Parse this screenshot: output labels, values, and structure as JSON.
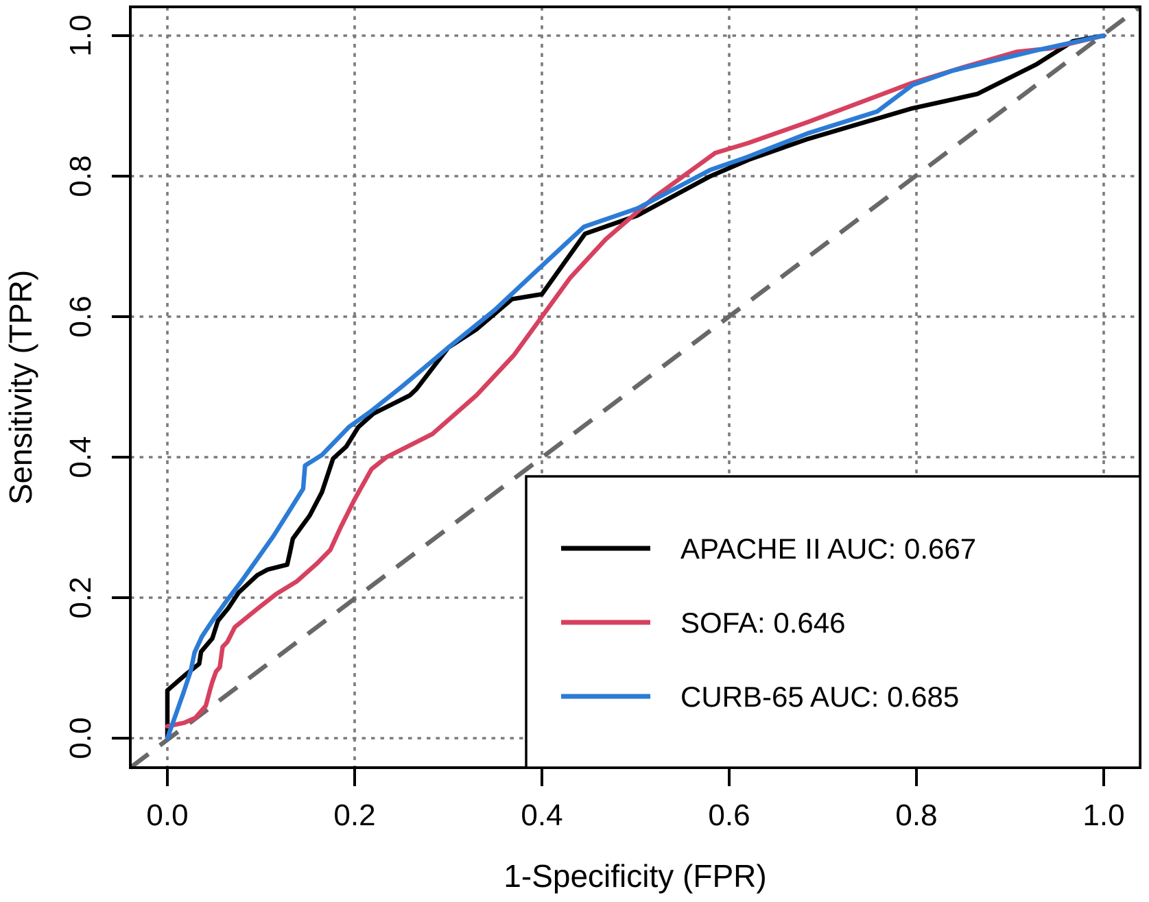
{
  "figure": {
    "background": "#ffffff",
    "border_color": "#000000"
  },
  "chart_data": {
    "type": "line",
    "subtype": "roc-curves",
    "title": "",
    "xlabel": "1-Specificity (FPR)",
    "ylabel": "Sensitivity (TPR)",
    "xlim": [
      0,
      1
    ],
    "ylim": [
      0,
      1
    ],
    "grid": {
      "show": true,
      "style": "dotted",
      "color": "#7b7b7b"
    },
    "x_ticks": [
      "0.0",
      "0.2",
      "0.4",
      "0.6",
      "0.8",
      "1.0"
    ],
    "y_ticks": [
      "0.0",
      "0.2",
      "0.4",
      "0.6",
      "0.8",
      "1.0"
    ],
    "x_tick_values": [
      0,
      0.2,
      0.4,
      0.6,
      0.8,
      1
    ],
    "y_tick_values": [
      0,
      0.2,
      0.4,
      0.6,
      0.8,
      1
    ],
    "reference_line": {
      "name": "chance-diagonal",
      "style": "dashed",
      "color": "#686868",
      "from": [
        0,
        0
      ],
      "to": [
        1,
        1
      ]
    },
    "legend": {
      "position": "bottom-right",
      "border": true,
      "background": "#ffffff"
    },
    "series": [
      {
        "name": "APACHE II",
        "legend_label": "APACHE II AUC: 0.667",
        "auc": "0.667",
        "color": "#000000",
        "points": [
          [
            0,
            0
          ],
          [
            0,
            0.068
          ],
          [
            0.019,
            0.09
          ],
          [
            0.034,
            0.106
          ],
          [
            0.036,
            0.123
          ],
          [
            0.048,
            0.142
          ],
          [
            0.054,
            0.167
          ],
          [
            0.065,
            0.185
          ],
          [
            0.076,
            0.207
          ],
          [
            0.096,
            0.232
          ],
          [
            0.107,
            0.24
          ],
          [
            0.128,
            0.247
          ],
          [
            0.131,
            0.265
          ],
          [
            0.134,
            0.284
          ],
          [
            0.152,
            0.317
          ],
          [
            0.165,
            0.35
          ],
          [
            0.177,
            0.398
          ],
          [
            0.191,
            0.415
          ],
          [
            0.204,
            0.443
          ],
          [
            0.22,
            0.462
          ],
          [
            0.259,
            0.488
          ],
          [
            0.266,
            0.497
          ],
          [
            0.3,
            0.556
          ],
          [
            0.33,
            0.582
          ],
          [
            0.368,
            0.625
          ],
          [
            0.4,
            0.632
          ],
          [
            0.446,
            0.718
          ],
          [
            0.502,
            0.744
          ],
          [
            0.58,
            0.8
          ],
          [
            0.622,
            0.824
          ],
          [
            0.684,
            0.853
          ],
          [
            0.794,
            0.896
          ],
          [
            0.865,
            0.917
          ],
          [
            0.928,
            0.959
          ],
          [
            0.967,
            0.992
          ],
          [
            1,
            1
          ]
        ]
      },
      {
        "name": "SOFA",
        "legend_label": "SOFA: 0.646",
        "auc": "0.646",
        "color": "#D6415F",
        "points": [
          [
            0,
            0.017
          ],
          [
            0.018,
            0.022
          ],
          [
            0.03,
            0.029
          ],
          [
            0.041,
            0.046
          ],
          [
            0.046,
            0.071
          ],
          [
            0.048,
            0.08
          ],
          [
            0.052,
            0.095
          ],
          [
            0.056,
            0.101
          ],
          [
            0.059,
            0.13
          ],
          [
            0.064,
            0.137
          ],
          [
            0.072,
            0.158
          ],
          [
            0.096,
            0.184
          ],
          [
            0.116,
            0.205
          ],
          [
            0.138,
            0.223
          ],
          [
            0.16,
            0.249
          ],
          [
            0.174,
            0.268
          ],
          [
            0.185,
            0.3
          ],
          [
            0.2,
            0.34
          ],
          [
            0.218,
            0.383
          ],
          [
            0.234,
            0.4
          ],
          [
            0.283,
            0.433
          ],
          [
            0.33,
            0.488
          ],
          [
            0.37,
            0.545
          ],
          [
            0.4,
            0.6
          ],
          [
            0.43,
            0.655
          ],
          [
            0.468,
            0.71
          ],
          [
            0.52,
            0.77
          ],
          [
            0.585,
            0.833
          ],
          [
            0.62,
            0.847
          ],
          [
            0.684,
            0.877
          ],
          [
            0.794,
            0.932
          ],
          [
            0.85,
            0.955
          ],
          [
            0.907,
            0.977
          ],
          [
            0.943,
            0.982
          ],
          [
            1,
            1
          ]
        ]
      },
      {
        "name": "CURB-65",
        "legend_label": "CURB-65 AUC: 0.685",
        "auc": "0.685",
        "color": "#2C7CD6",
        "points": [
          [
            0,
            0
          ],
          [
            0.008,
            0.03
          ],
          [
            0.017,
            0.064
          ],
          [
            0.025,
            0.096
          ],
          [
            0.029,
            0.122
          ],
          [
            0.037,
            0.145
          ],
          [
            0.05,
            0.171
          ],
          [
            0.064,
            0.197
          ],
          [
            0.079,
            0.223
          ],
          [
            0.096,
            0.255
          ],
          [
            0.113,
            0.287
          ],
          [
            0.13,
            0.323
          ],
          [
            0.145,
            0.355
          ],
          [
            0.147,
            0.388
          ],
          [
            0.165,
            0.403
          ],
          [
            0.194,
            0.443
          ],
          [
            0.217,
            0.465
          ],
          [
            0.25,
            0.5
          ],
          [
            0.3,
            0.556
          ],
          [
            0.35,
            0.61
          ],
          [
            0.39,
            0.66
          ],
          [
            0.445,
            0.728
          ],
          [
            0.502,
            0.754
          ],
          [
            0.58,
            0.809
          ],
          [
            0.619,
            0.827
          ],
          [
            0.684,
            0.861
          ],
          [
            0.758,
            0.892
          ],
          [
            0.796,
            0.93
          ],
          [
            0.838,
            0.95
          ],
          [
            0.928,
            0.979
          ],
          [
            1,
            1
          ]
        ]
      }
    ]
  }
}
